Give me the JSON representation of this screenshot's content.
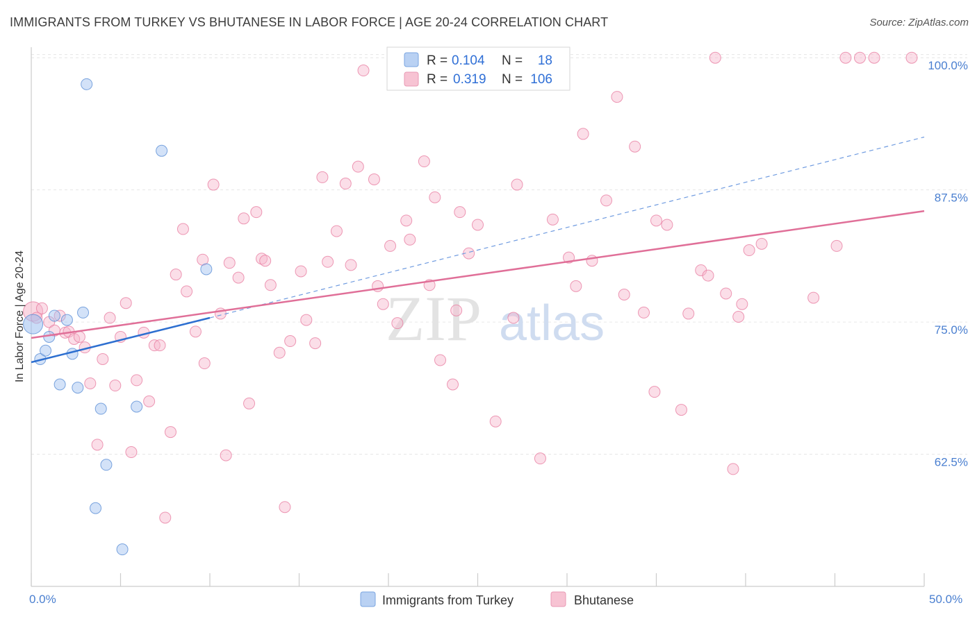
{
  "chart_data": {
    "type": "scatter",
    "title": "IMMIGRANTS FROM TURKEY VS BHUTANESE IN LABOR FORCE | AGE 20-24 CORRELATION CHART",
    "source": "Source: ZipAtlas.com",
    "ylabel": "In Labor Force | Age 20-24",
    "xlim": [
      0,
      50
    ],
    "ylim": [
      50,
      101
    ],
    "x_tick_labels": [
      "0.0%",
      "50.0%"
    ],
    "y_ticks": [
      62.5,
      75.0,
      87.5,
      100.0
    ],
    "y_tick_labels": [
      "62.5%",
      "75.0%",
      "87.5%",
      "100.0%"
    ],
    "watermark": {
      "zip": "ZIP",
      "atlas": "atlas"
    },
    "legend": {
      "r_label": "R =",
      "n_label": "N =",
      "entries": [
        {
          "r": "0.104",
          "n": "18"
        },
        {
          "r": "0.319",
          "n": "106"
        }
      ]
    },
    "series": [
      {
        "name": "Immigrants from Turkey",
        "color": "#9dbff0",
        "edge": "#5b8fd6",
        "line_color": "#2d6fd0",
        "trend": {
          "x0": 0,
          "y0": 71.2,
          "x1": 10,
          "y1": 75.4,
          "dashed_to_x": 50,
          "dashed_to_y": 92.5
        },
        "points": [
          [
            0.1,
            74.8
          ],
          [
            0.5,
            71.5
          ],
          [
            0.8,
            72.3
          ],
          [
            1.0,
            73.6
          ],
          [
            1.3,
            75.6
          ],
          [
            1.6,
            69.1
          ],
          [
            2.0,
            75.2
          ],
          [
            2.3,
            72.0
          ],
          [
            2.6,
            68.8
          ],
          [
            2.9,
            75.9
          ],
          [
            3.1,
            97.5
          ],
          [
            3.6,
            57.4
          ],
          [
            3.9,
            66.8
          ],
          [
            4.2,
            61.5
          ],
          [
            5.1,
            53.5
          ],
          [
            5.9,
            67.0
          ],
          [
            7.3,
            91.2
          ],
          [
            9.8,
            80.0
          ]
        ]
      },
      {
        "name": "Bhutanese",
        "color": "#f6b6cb",
        "edge": "#e87fa2",
        "line_color": "#e06f98",
        "trend": {
          "x0": 0,
          "y0": 73.5,
          "x1": 50,
          "y1": 85.5
        },
        "points": [
          [
            0.1,
            76.0
          ],
          [
            0.3,
            75.4
          ],
          [
            0.6,
            76.3
          ],
          [
            1.0,
            75.0
          ],
          [
            1.3,
            74.2
          ],
          [
            1.6,
            75.6
          ],
          [
            1.9,
            74.0
          ],
          [
            2.1,
            74.1
          ],
          [
            2.4,
            73.4
          ],
          [
            2.7,
            73.6
          ],
          [
            3.0,
            72.6
          ],
          [
            3.3,
            69.2
          ],
          [
            3.7,
            63.4
          ],
          [
            4.0,
            71.5
          ],
          [
            4.4,
            75.4
          ],
          [
            4.7,
            69.0
          ],
          [
            5.0,
            73.6
          ],
          [
            5.3,
            76.8
          ],
          [
            5.6,
            62.7
          ],
          [
            5.9,
            69.5
          ],
          [
            6.3,
            74.0
          ],
          [
            6.6,
            67.5
          ],
          [
            6.9,
            72.8
          ],
          [
            7.2,
            72.8
          ],
          [
            7.5,
            56.5
          ],
          [
            7.8,
            64.6
          ],
          [
            8.1,
            79.5
          ],
          [
            8.5,
            83.8
          ],
          [
            8.7,
            77.9
          ],
          [
            9.2,
            74.1
          ],
          [
            9.6,
            80.9
          ],
          [
            9.7,
            71.1
          ],
          [
            10.2,
            88.0
          ],
          [
            10.6,
            75.8
          ],
          [
            10.9,
            62.4
          ],
          [
            11.1,
            80.6
          ],
          [
            11.6,
            79.2
          ],
          [
            11.9,
            84.8
          ],
          [
            12.2,
            67.3
          ],
          [
            12.6,
            85.4
          ],
          [
            12.9,
            81.0
          ],
          [
            13.1,
            80.8
          ],
          [
            13.4,
            78.5
          ],
          [
            13.9,
            72.1
          ],
          [
            14.2,
            57.5
          ],
          [
            14.5,
            73.2
          ],
          [
            15.1,
            79.8
          ],
          [
            15.4,
            75.2
          ],
          [
            15.9,
            73.0
          ],
          [
            16.3,
            88.7
          ],
          [
            16.6,
            80.7
          ],
          [
            17.1,
            83.6
          ],
          [
            17.6,
            88.1
          ],
          [
            17.9,
            80.4
          ],
          [
            18.3,
            89.7
          ],
          [
            18.6,
            98.8
          ],
          [
            19.2,
            88.5
          ],
          [
            19.4,
            78.4
          ],
          [
            19.7,
            76.7
          ],
          [
            20.1,
            82.2
          ],
          [
            20.5,
            74.9
          ],
          [
            21.0,
            84.6
          ],
          [
            21.2,
            82.8
          ],
          [
            22.0,
            90.2
          ],
          [
            22.3,
            78.5
          ],
          [
            22.6,
            86.8
          ],
          [
            22.9,
            71.4
          ],
          [
            23.6,
            69.1
          ],
          [
            23.8,
            76.1
          ],
          [
            24.0,
            85.4
          ],
          [
            24.5,
            81.5
          ],
          [
            25.0,
            84.2
          ],
          [
            26.0,
            65.6
          ],
          [
            27.0,
            75.4
          ],
          [
            27.2,
            88.0
          ],
          [
            28.5,
            62.1
          ],
          [
            29.2,
            84.7
          ],
          [
            30.1,
            81.1
          ],
          [
            30.5,
            78.4
          ],
          [
            30.9,
            92.8
          ],
          [
            31.4,
            80.8
          ],
          [
            32.2,
            86.5
          ],
          [
            32.8,
            96.3
          ],
          [
            33.2,
            77.6
          ],
          [
            33.8,
            91.6
          ],
          [
            34.3,
            75.9
          ],
          [
            34.9,
            68.4
          ],
          [
            35.0,
            84.6
          ],
          [
            35.6,
            84.2
          ],
          [
            36.4,
            66.7
          ],
          [
            36.8,
            75.8
          ],
          [
            37.5,
            79.9
          ],
          [
            37.9,
            79.4
          ],
          [
            38.3,
            100.0
          ],
          [
            38.9,
            77.7
          ],
          [
            39.3,
            61.1
          ],
          [
            39.6,
            75.5
          ],
          [
            39.8,
            76.7
          ],
          [
            40.2,
            81.8
          ],
          [
            40.9,
            82.4
          ],
          [
            43.8,
            77.3
          ],
          [
            45.1,
            82.2
          ],
          [
            45.6,
            100.0
          ],
          [
            46.4,
            100.0
          ],
          [
            47.2,
            100.0
          ],
          [
            49.3,
            100.0
          ]
        ]
      }
    ]
  }
}
